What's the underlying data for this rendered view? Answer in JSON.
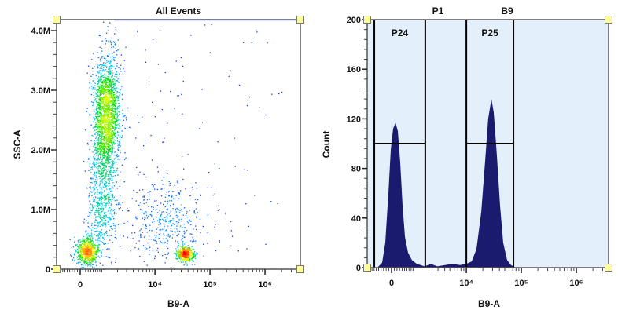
{
  "chart_data": [
    {
      "type": "scatter",
      "title": "All Events",
      "xlabel": "B9-A",
      "ylabel": "SSC-A",
      "x_scale": "biexponential",
      "x_ticks": [
        {
          "value": 0,
          "label": "0"
        },
        {
          "value": 10000,
          "label": "10⁴"
        },
        {
          "value": 100000,
          "label": "10⁵"
        },
        {
          "value": 1000000,
          "label": "10⁶"
        }
      ],
      "y_ticks": [
        {
          "value": 0,
          "label": "0"
        },
        {
          "value": 1.0,
          "label": "1.0M"
        },
        {
          "value": 2.0,
          "label": "2.0M"
        },
        {
          "value": 3.0,
          "label": "3.0M"
        },
        {
          "value": 4.0,
          "label": "4.0M"
        }
      ],
      "ylim": [
        0,
        4.2
      ],
      "color_mode": "density (blue-cyan-green-yellow-red)",
      "populations": [
        {
          "b9_center": 233,
          "ssc_center_M": 0.3,
          "b9_spread_decades": 0.1,
          "ssc_spread_M": 0.12,
          "events": 700
        },
        {
          "b9_center": 1150,
          "ssc_center_M": 2.6,
          "b9_spread_decades": 0.12,
          "ssc_spread_M": 0.5,
          "events": 2000
        },
        {
          "b9_center": 900,
          "ssc_center_M": 1.2,
          "b9_spread_decades": 0.13,
          "ssc_spread_M": 0.5,
          "events": 700
        },
        {
          "b9_center": 34800,
          "ssc_center_M": 0.26,
          "b9_spread_decades": 0.08,
          "ssc_spread_M": 0.06,
          "events": 450
        },
        {
          "b9_center": 15300,
          "ssc_center_M": 0.8,
          "b9_spread_decades": 0.35,
          "ssc_spread_M": 0.35,
          "events": 400
        }
      ],
      "sparse_events": 120,
      "saturated_ssc_M": 4.18,
      "colors": {
        "low": "#0a2cff",
        "mid": "#00e000",
        "high": "#ff0000",
        "frame": "#555555",
        "handle": "#ffff99"
      }
    },
    {
      "type": "area",
      "title": "",
      "xlabel": "B9-A",
      "ylabel": "Count",
      "x_scale": "biexponential",
      "x_ticks": [
        {
          "value": 0,
          "label": "0"
        },
        {
          "value": 10000,
          "label": "10⁴"
        },
        {
          "value": 100000,
          "label": "10⁵"
        },
        {
          "value": 1000000,
          "label": "10⁶"
        }
      ],
      "y_ticks": [
        {
          "value": 0,
          "label": "0"
        },
        {
          "value": 40,
          "label": "40"
        },
        {
          "value": 80,
          "label": "80"
        },
        {
          "value": 120,
          "label": "120"
        },
        {
          "value": 160,
          "label": "160"
        },
        {
          "value": 200,
          "label": "200"
        }
      ],
      "ylim": [
        0,
        200
      ],
      "histogram": [
        [
          -550,
          0
        ],
        [
          -355,
          4
        ],
        [
          -233,
          20
        ],
        [
          -116,
          60
        ],
        [
          -29,
          95
        ],
        [
          58,
          112
        ],
        [
          145,
          117
        ],
        [
          233,
          110
        ],
        [
          324,
          85
        ],
        [
          418,
          50
        ],
        [
          516,
          25
        ],
        [
          655,
          12
        ],
        [
          845,
          6
        ],
        [
          1110,
          3
        ],
        [
          1640,
          1
        ],
        [
          2180,
          3
        ],
        [
          2890,
          1
        ],
        [
          4060,
          2
        ],
        [
          5490,
          3
        ],
        [
          7650,
          2
        ],
        [
          9960,
          3
        ],
        [
          12500,
          5
        ],
        [
          15300,
          15
        ],
        [
          18700,
          45
        ],
        [
          21900,
          85
        ],
        [
          25000,
          120
        ],
        [
          28600,
          136
        ],
        [
          31600,
          125
        ],
        [
          36000,
          90
        ],
        [
          41000,
          50
        ],
        [
          46800,
          20
        ],
        [
          55200,
          6
        ],
        [
          65000,
          2
        ],
        [
          79300,
          0
        ]
      ],
      "gates": [
        {
          "name": "P24",
          "from": -690,
          "to": 1690,
          "level": 100
        },
        {
          "name": "P25",
          "from": 10000,
          "to": 72000,
          "level": 100
        }
      ],
      "header_labels": [
        "P1",
        "B9"
      ],
      "colors": {
        "fill": "#1a1a6e",
        "background": "#e3f0fb",
        "gate": "#000000",
        "handle": "#ffff99"
      }
    }
  ]
}
